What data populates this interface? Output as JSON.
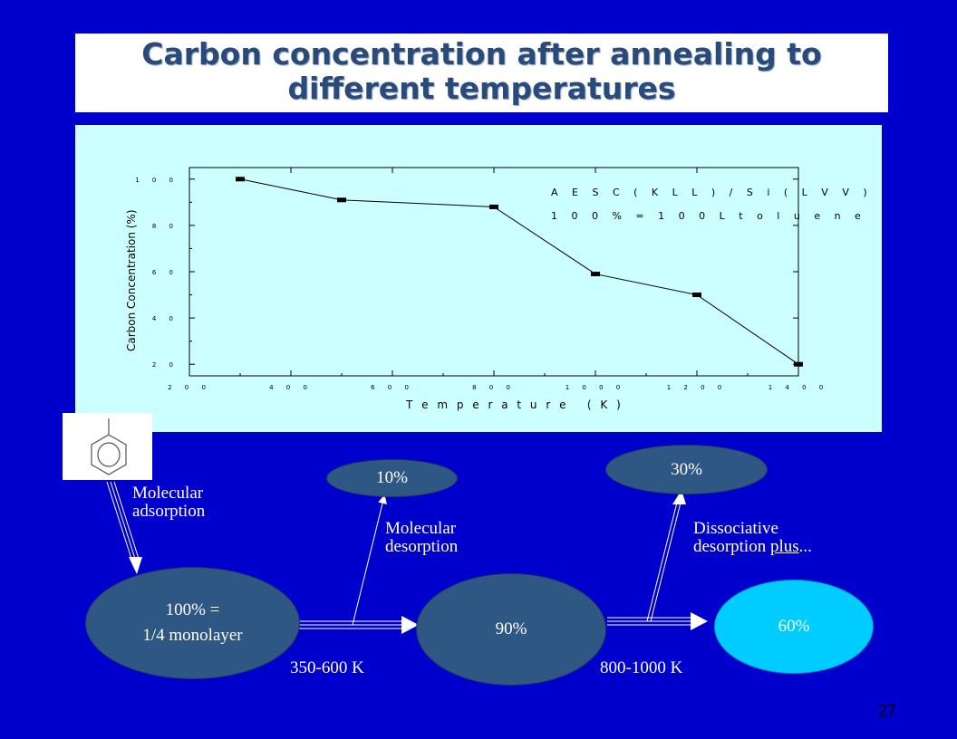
{
  "title": {
    "line1": "Carbon concentration after annealing to",
    "line2": "different temperatures"
  },
  "chart_data": {
    "type": "line",
    "xlabel": "T e m p e r a t u r e   ( K )",
    "ylabel": "Carbon Concentration (%)",
    "xlim": [
      200,
      1400
    ],
    "ylim": [
      15,
      105
    ],
    "x_ticks": [
      "2 0 0",
      "4 0 0",
      "6 0 0",
      "8 0 0",
      "1 0 0 0",
      "1 2 0 0",
      "1 4 0 0"
    ],
    "x_tick_values": [
      200,
      400,
      600,
      800,
      1000,
      1200,
      1400
    ],
    "y_ticks": [
      "2 0",
      "4 0",
      "6 0",
      "8 0",
      "1 0 0"
    ],
    "y_tick_values": [
      20,
      40,
      60,
      80,
      100
    ],
    "x": [
      300,
      500,
      800,
      1000,
      1200,
      1400
    ],
    "y": [
      100,
      91,
      88,
      59,
      50,
      20
    ],
    "annotations": [
      "A E S   C ( K L L ) / S i ( L V V )",
      "1 0 0 %   =   1 0 0   L   t o l u e n e"
    ]
  },
  "diagram": {
    "ellipse_start": [
      "100%  =",
      "1/4 monolayer"
    ],
    "ellipse_middle": "90%",
    "ellipse_end": "60%",
    "ellipse_top1": "10%",
    "ellipse_top2": "30%",
    "label_adsorption": [
      "Molecular",
      "adsorption"
    ],
    "label_desorption": [
      "Molecular",
      "desorption"
    ],
    "label_dissociative_1": "Dissociative",
    "label_dissociative_2a": "desorption ",
    "label_dissociative_2b": "plus",
    "label_dissociative_2c": "...",
    "temp_range_1": "350-600 K",
    "temp_range_2": "800-1000 K"
  },
  "page_number": "27",
  "colors": {
    "background": "#0000cc",
    "title_text": "#2a4a7a",
    "chart_bg": "#ccffff",
    "ellipse_dark": "#2e5784",
    "ellipse_light": "#00ccff"
  }
}
